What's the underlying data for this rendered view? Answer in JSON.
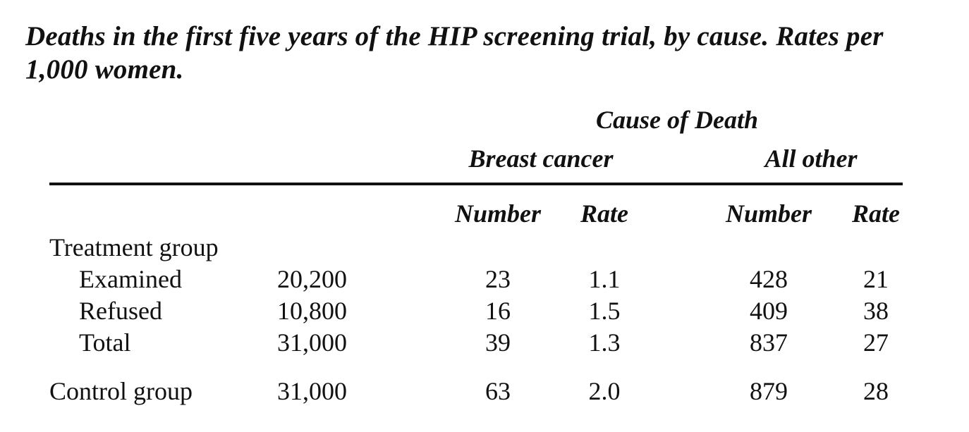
{
  "caption": "Deaths in the first five years of the HIP screening trial, by cause. Rates per 1,000 women.",
  "table": {
    "spanner": "Cause of Death",
    "groups": [
      "Breast cancer",
      "All other"
    ],
    "subheaders": [
      "Number",
      "Rate",
      "Number",
      "Rate"
    ],
    "section_label": "Treatment group",
    "rows": [
      {
        "label": "Examined",
        "size": "20,200",
        "bc_number": "23",
        "bc_rate": "1.1",
        "other_number": "428",
        "other_rate": "21"
      },
      {
        "label": "Refused",
        "size": "10,800",
        "bc_number": "16",
        "bc_rate": "1.5",
        "other_number": "409",
        "other_rate": "38"
      },
      {
        "label": "Total",
        "size": "31,000",
        "bc_number": "39",
        "bc_rate": "1.3",
        "other_number": "837",
        "other_rate": "27"
      },
      {
        "label": "Control group",
        "size": "31,000",
        "bc_number": "63",
        "bc_rate": "2.0",
        "other_number": "879",
        "other_rate": "28"
      }
    ]
  }
}
